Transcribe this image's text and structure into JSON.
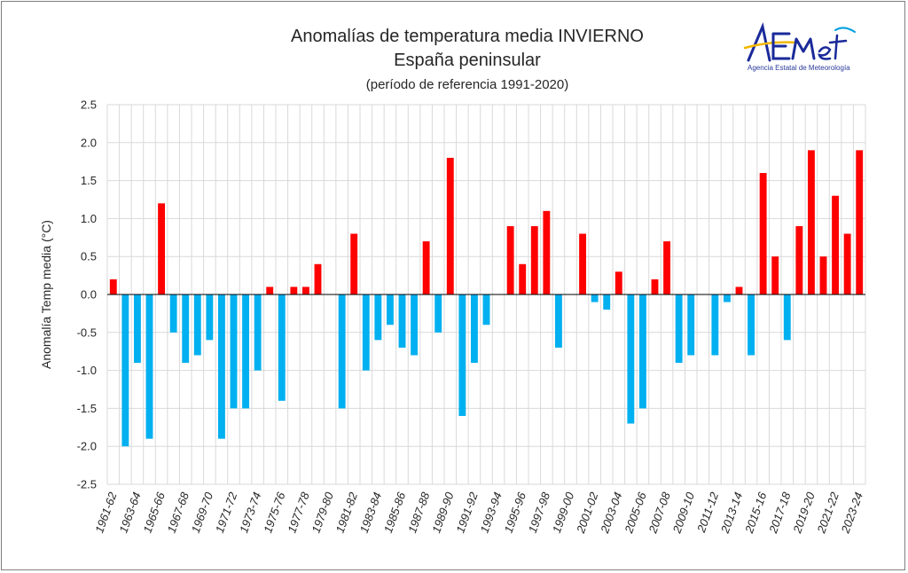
{
  "header": {
    "title": "Anomalías de temperatura media INVIERNO",
    "subtitle": "España peninsular",
    "reference": "(período de referencia 1991-2020)"
  },
  "logo": {
    "name": "AEMet",
    "tagline": "Agencia Estatal de Meteorología"
  },
  "colors": {
    "positive": "#ff0000",
    "negative": "#00b0f0",
    "grid": "#d9d9d9",
    "axis": "#000000"
  },
  "chart_data": {
    "type": "bar",
    "title": "Anomalías de temperatura media INVIERNO",
    "subtitle": "España peninsular",
    "xlabel": "",
    "ylabel": "Anomalía Temp media (°C)",
    "ylim": [
      -2.5,
      2.5
    ],
    "yticks": [
      2.5,
      2.0,
      1.5,
      1.0,
      0.5,
      0.0,
      -0.5,
      -1.0,
      -1.5,
      -2.0,
      -2.5
    ],
    "ytick_labels": [
      "2.5",
      "2.0",
      "1.5",
      "1.0",
      "0.5",
      "0.0",
      "-0.5",
      "-1.0",
      "-1.5",
      "-2.0",
      "-2.5"
    ],
    "grid": true,
    "categories": [
      "1961-62",
      "1962-63",
      "1963-64",
      "1964-65",
      "1965-66",
      "1966-67",
      "1967-68",
      "1968-69",
      "1969-70",
      "1970-71",
      "1971-72",
      "1972-73",
      "1973-74",
      "1974-75",
      "1975-76",
      "1976-77",
      "1977-78",
      "1978-79",
      "1979-80",
      "1980-81",
      "1981-82",
      "1982-83",
      "1983-84",
      "1984-85",
      "1985-86",
      "1986-87",
      "1987-88",
      "1988-89",
      "1989-90",
      "1990-91",
      "1991-92",
      "1992-93",
      "1993-94",
      "1994-95",
      "1995-96",
      "1996-97",
      "1997-98",
      "1998-99",
      "1999-00",
      "2000-01",
      "2001-02",
      "2002-03",
      "2003-04",
      "2004-05",
      "2005-06",
      "2006-07",
      "2007-08",
      "2008-09",
      "2009-10",
      "2010-11",
      "2011-12",
      "2012-13",
      "2013-14",
      "2014-15",
      "2015-16",
      "2016-17",
      "2017-18",
      "2018-19",
      "2019-20",
      "2020-21",
      "2021-22",
      "2022-23",
      "2023-24"
    ],
    "tick_labels": [
      "1961-62",
      "1963-64",
      "1965-66",
      "1967-68",
      "1969-70",
      "1971-72",
      "1973-74",
      "1975-76",
      "1977-78",
      "1979-80",
      "1981-82",
      "1983-84",
      "1985-86",
      "1987-88",
      "1989-90",
      "1991-92",
      "1993-94",
      "1995-96",
      "1997-98",
      "1999-00",
      "2001-02",
      "2003-04",
      "2005-06",
      "2007-08",
      "2009-10",
      "2011-12",
      "2013-14",
      "2015-16",
      "2017-18",
      "2019-20",
      "2021-22",
      "2023-24"
    ],
    "values": [
      0.2,
      -2.0,
      -0.9,
      -1.9,
      1.2,
      -0.5,
      -0.9,
      -0.8,
      -0.6,
      -1.9,
      -1.5,
      -1.5,
      -1.0,
      0.1,
      -1.4,
      0.1,
      0.1,
      0.4,
      0.0,
      -1.5,
      0.8,
      -1.0,
      -0.6,
      -0.4,
      -0.7,
      -0.8,
      0.7,
      -0.5,
      1.8,
      -1.6,
      -0.9,
      -0.4,
      0.0,
      0.9,
      0.4,
      0.9,
      1.1,
      -0.7,
      0.0,
      0.8,
      -0.1,
      -0.2,
      0.3,
      -1.7,
      -1.5,
      0.2,
      0.7,
      -0.9,
      -0.8,
      0.0,
      -0.8,
      -0.1,
      0.1,
      -0.8,
      1.6,
      0.5,
      -0.6,
      0.9,
      1.9,
      0.5,
      1.3,
      0.8,
      1.9
    ]
  }
}
